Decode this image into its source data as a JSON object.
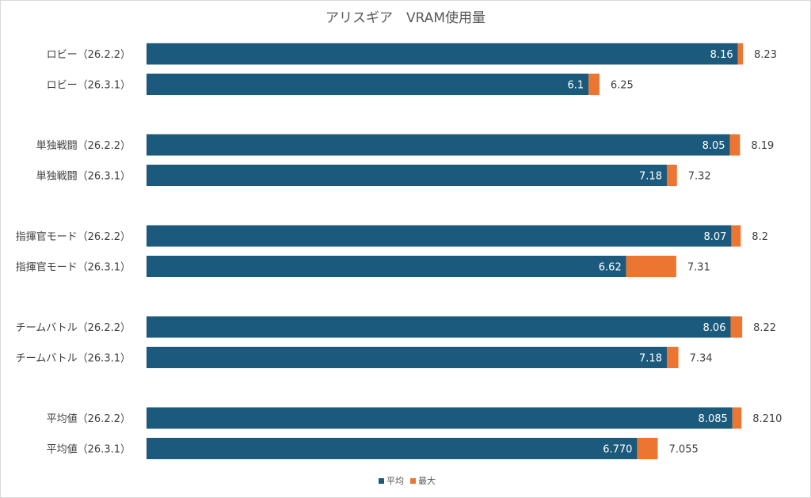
{
  "chart_data": {
    "type": "bar",
    "orientation": "horizontal",
    "stacked": true,
    "title": "アリスギア　VRAM使用量",
    "xlabel": "",
    "ylabel": "",
    "xlim": [
      0,
      9
    ],
    "grid": false,
    "legend_position": "bottom",
    "legend": [
      "平均",
      "最大"
    ],
    "colors": {
      "avg": "#1b5a7c",
      "max": "#ed7532"
    },
    "categories": [
      "ロビー（26.2.2）",
      "ロビー（26.3.1）",
      "単独戦闘（26.2.2）",
      "単独戦闘（26.3.1）",
      "指揮官モード（26.2.2）",
      "指揮官モード（26.3.1）",
      "チームバトル（26.2.2）",
      "チームバトル（26.3.1）",
      "平均値（26.2.2）",
      "平均値（26.3.1）"
    ],
    "series": [
      {
        "name": "平均",
        "values": [
          "8.16",
          "6.1",
          "8.05",
          "7.18",
          "8.07",
          "6.62",
          "8.06",
          "7.18",
          "8.085",
          "6.770"
        ]
      },
      {
        "name": "最大",
        "values": [
          "8.23",
          "6.25",
          "8.19",
          "7.32",
          "8.2",
          "7.31",
          "8.22",
          "7.34",
          "8.210",
          "7.055"
        ]
      }
    ]
  }
}
